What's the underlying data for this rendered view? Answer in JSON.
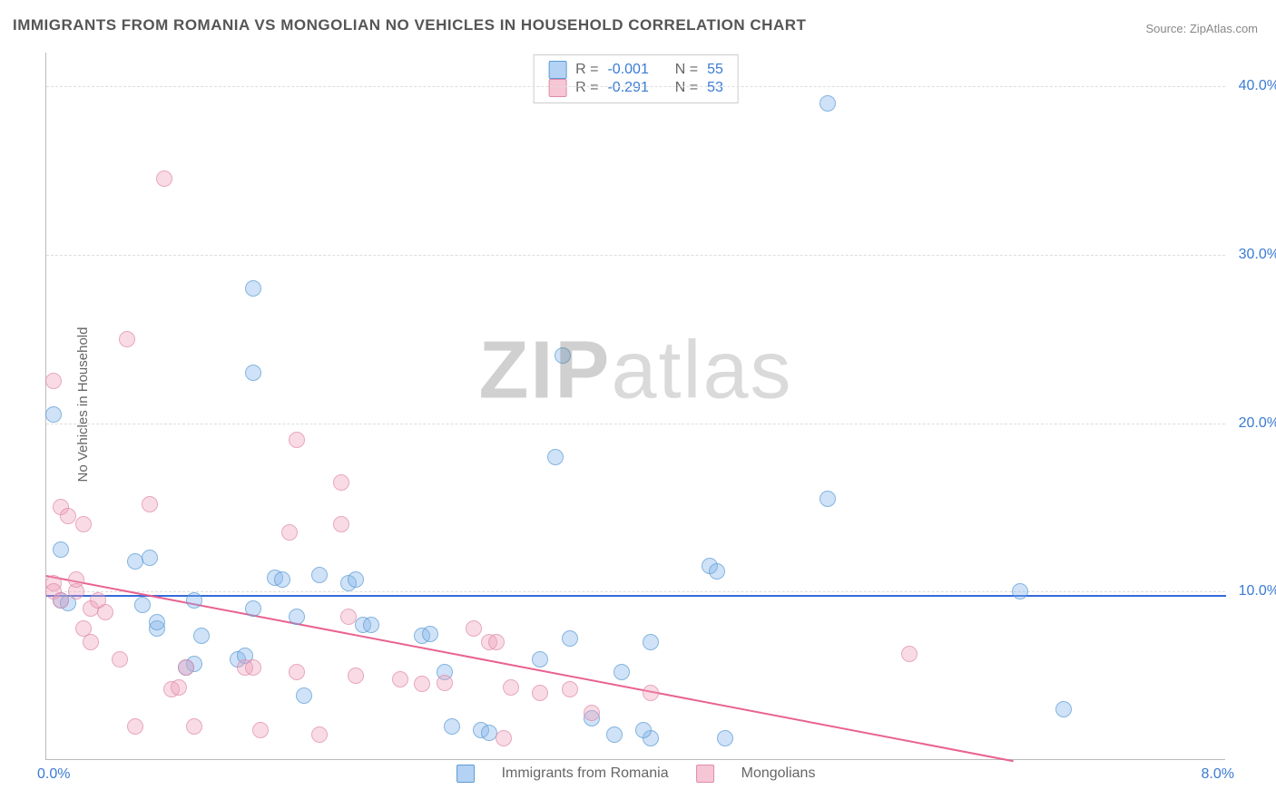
{
  "title": "IMMIGRANTS FROM ROMANIA VS MONGOLIAN NO VEHICLES IN HOUSEHOLD CORRELATION CHART",
  "source": "Source: ZipAtlas.com",
  "watermark_bold": "ZIP",
  "watermark_light": "atlas",
  "y_axis_label": "No Vehicles in Household",
  "chart": {
    "type": "scatter",
    "x_min": 0.0,
    "x_max": 8.0,
    "y_min": 0.0,
    "y_max": 42.0,
    "x_tick_left": "0.0%",
    "x_tick_right": "8.0%",
    "y_gridlines": [
      10.0,
      20.0,
      30.0,
      40.0
    ],
    "y_tick_labels": [
      "10.0%",
      "20.0%",
      "30.0%",
      "40.0%"
    ],
    "background_color": "#ffffff",
    "grid_color": "#dddddd",
    "axis_color": "#bbbbbb",
    "label_fontsize": 15,
    "tick_fontsize": 16,
    "tick_color": "#3a7bd5"
  },
  "series": [
    {
      "name": "Immigrants from Romania",
      "color_fill": "rgba(130,180,235,0.5)",
      "color_stroke": "#5a9bd5",
      "r_label": "R =",
      "r_value": "-0.001",
      "n_label": "N =",
      "n_value": "55",
      "trend": {
        "y_start": 9.8,
        "y_end": 9.7,
        "color": "#2962d9"
      },
      "points": [
        [
          0.05,
          20.5
        ],
        [
          0.1,
          12.5
        ],
        [
          0.1,
          9.5
        ],
        [
          0.15,
          9.3
        ],
        [
          0.6,
          11.8
        ],
        [
          0.65,
          9.2
        ],
        [
          0.7,
          12.0
        ],
        [
          0.75,
          7.8
        ],
        [
          0.75,
          8.2
        ],
        [
          0.95,
          5.5
        ],
        [
          1.0,
          5.7
        ],
        [
          1.05,
          7.4
        ],
        [
          1.4,
          28.0
        ],
        [
          1.4,
          23.0
        ],
        [
          1.0,
          9.5
        ],
        [
          1.3,
          6.0
        ],
        [
          1.35,
          6.2
        ],
        [
          1.4,
          9.0
        ],
        [
          1.55,
          10.8
        ],
        [
          1.6,
          10.7
        ],
        [
          1.7,
          8.5
        ],
        [
          1.75,
          3.8
        ],
        [
          1.85,
          11.0
        ],
        [
          2.05,
          10.5
        ],
        [
          2.1,
          10.7
        ],
        [
          2.15,
          8.0
        ],
        [
          2.2,
          8.0
        ],
        [
          2.55,
          7.4
        ],
        [
          2.6,
          7.5
        ],
        [
          2.7,
          5.2
        ],
        [
          2.75,
          2.0
        ],
        [
          2.95,
          1.8
        ],
        [
          3.0,
          1.6
        ],
        [
          3.35,
          6.0
        ],
        [
          3.45,
          18.0
        ],
        [
          3.5,
          24.0
        ],
        [
          3.55,
          7.2
        ],
        [
          3.7,
          2.5
        ],
        [
          3.85,
          1.5
        ],
        [
          4.1,
          1.3
        ],
        [
          3.9,
          5.2
        ],
        [
          4.05,
          1.8
        ],
        [
          4.1,
          7.0
        ],
        [
          4.5,
          11.5
        ],
        [
          4.55,
          11.2
        ],
        [
          4.6,
          1.3
        ],
        [
          5.3,
          39.0
        ],
        [
          5.3,
          15.5
        ],
        [
          6.9,
          3.0
        ],
        [
          6.6,
          10.0
        ]
      ]
    },
    {
      "name": "Mongolians",
      "color_fill": "rgba(240,160,185,0.5)",
      "color_stroke": "#e08aaa",
      "r_label": "R =",
      "r_value": "-0.291",
      "n_label": "N =",
      "n_value": "53",
      "trend": {
        "y_start": 11.0,
        "y_end": 0.0,
        "x_end_frac": 0.82,
        "color": "#e85a8a"
      },
      "points": [
        [
          0.05,
          22.5
        ],
        [
          0.05,
          10.5
        ],
        [
          0.05,
          10.0
        ],
        [
          0.1,
          9.5
        ],
        [
          0.1,
          15.0
        ],
        [
          0.15,
          14.5
        ],
        [
          0.2,
          10.0
        ],
        [
          0.2,
          10.7
        ],
        [
          0.25,
          7.8
        ],
        [
          0.25,
          14.0
        ],
        [
          0.3,
          9.0
        ],
        [
          0.3,
          7.0
        ],
        [
          0.35,
          9.5
        ],
        [
          0.4,
          8.8
        ],
        [
          0.5,
          6.0
        ],
        [
          0.55,
          25.0
        ],
        [
          0.6,
          2.0
        ],
        [
          0.7,
          15.2
        ],
        [
          0.8,
          34.5
        ],
        [
          0.85,
          4.2
        ],
        [
          0.9,
          4.3
        ],
        [
          0.95,
          5.5
        ],
        [
          1.0,
          2.0
        ],
        [
          1.35,
          5.5
        ],
        [
          1.4,
          5.5
        ],
        [
          1.45,
          1.8
        ],
        [
          1.65,
          13.5
        ],
        [
          1.7,
          5.2
        ],
        [
          1.7,
          19.0
        ],
        [
          1.85,
          1.5
        ],
        [
          2.0,
          16.5
        ],
        [
          2.0,
          14.0
        ],
        [
          2.05,
          8.5
        ],
        [
          2.1,
          5.0
        ],
        [
          2.4,
          4.8
        ],
        [
          2.55,
          4.5
        ],
        [
          2.7,
          4.6
        ],
        [
          2.9,
          7.8
        ],
        [
          3.0,
          7.0
        ],
        [
          3.05,
          7.0
        ],
        [
          3.15,
          4.3
        ],
        [
          3.1,
          1.3
        ],
        [
          3.35,
          4.0
        ],
        [
          3.55,
          4.2
        ],
        [
          3.7,
          2.8
        ],
        [
          5.85,
          6.3
        ],
        [
          4.1,
          4.0
        ]
      ]
    }
  ],
  "bottom_legend": {
    "series1": "Immigrants from Romania",
    "series2": "Mongolians"
  }
}
